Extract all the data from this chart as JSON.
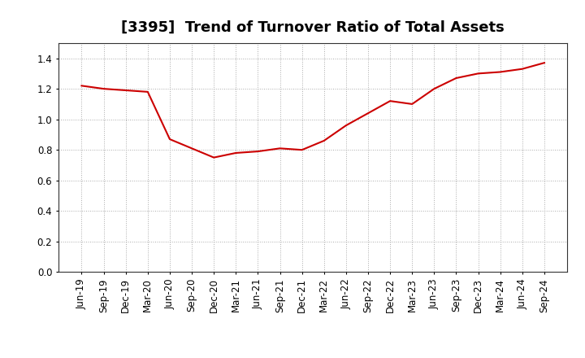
{
  "title": "[3395]  Trend of Turnover Ratio of Total Assets",
  "x_labels": [
    "Jun-19",
    "Sep-19",
    "Dec-19",
    "Mar-20",
    "Jun-20",
    "Sep-20",
    "Dec-20",
    "Mar-21",
    "Jun-21",
    "Sep-21",
    "Dec-21",
    "Mar-22",
    "Jun-22",
    "Sep-22",
    "Dec-22",
    "Mar-23",
    "Jun-23",
    "Sep-23",
    "Dec-23",
    "Mar-24",
    "Jun-24",
    "Sep-24"
  ],
  "y_values": [
    1.22,
    1.2,
    1.19,
    1.18,
    0.87,
    0.81,
    0.75,
    0.78,
    0.79,
    0.81,
    0.8,
    0.86,
    0.96,
    1.04,
    1.12,
    1.1,
    1.2,
    1.27,
    1.3,
    1.31,
    1.33,
    1.37
  ],
  "line_color": "#cc0000",
  "ylim": [
    0.0,
    1.5
  ],
  "yticks": [
    0.0,
    0.2,
    0.4,
    0.6,
    0.8,
    1.0,
    1.2,
    1.4
  ],
  "grid_color": "#aaaaaa",
  "plot_bg_color": "#ffffff",
  "fig_bg_color": "#ffffff",
  "title_fontsize": 13,
  "tick_fontsize": 8.5,
  "spine_color": "#333333"
}
